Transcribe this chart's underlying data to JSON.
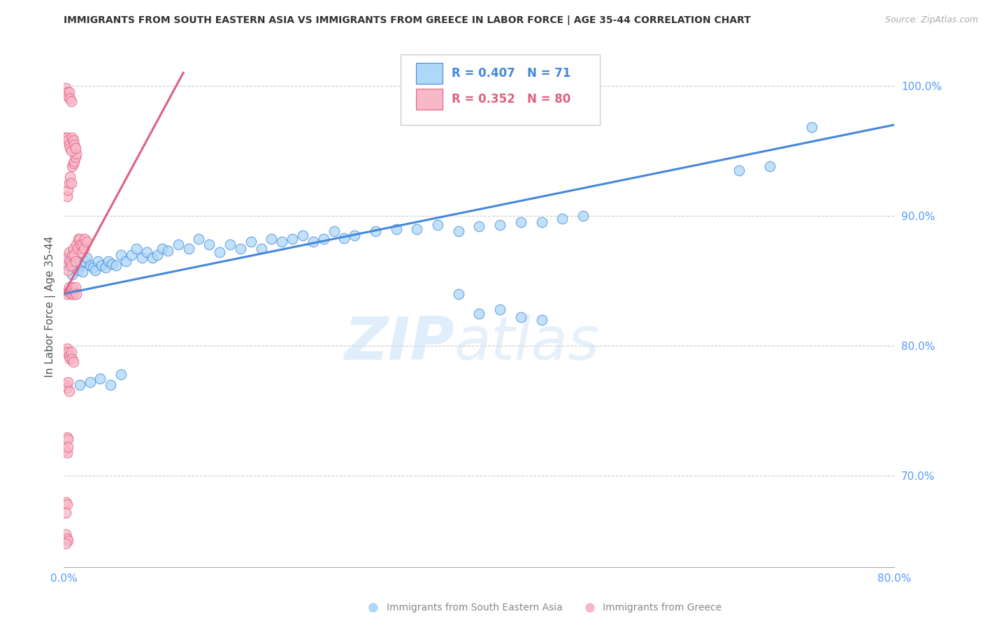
{
  "title": "IMMIGRANTS FROM SOUTH EASTERN ASIA VS IMMIGRANTS FROM GREECE IN LABOR FORCE | AGE 35-44 CORRELATION CHART",
  "source": "Source: ZipAtlas.com",
  "ylabel": "In Labor Force | Age 35-44",
  "xlim": [
    0.0,
    0.8
  ],
  "ylim": [
    0.63,
    1.03
  ],
  "xticks": [
    0.0,
    0.1,
    0.2,
    0.3,
    0.4,
    0.5,
    0.6,
    0.7,
    0.8
  ],
  "xtick_labels": [
    "0.0%",
    "",
    "",
    "",
    "",
    "",
    "",
    "",
    "80.0%"
  ],
  "ytick_values_right": [
    0.7,
    0.8,
    0.9,
    1.0
  ],
  "ytick_labels_right": [
    "70.0%",
    "80.0%",
    "90.0%",
    "100.0%"
  ],
  "blue_color": "#ADD8F7",
  "blue_color_dark": "#4488DD",
  "pink_color": "#F9B8C8",
  "pink_color_dark": "#E06080",
  "R_blue": 0.407,
  "N_blue": 71,
  "R_pink": 0.352,
  "N_pink": 80,
  "legend_label_blue": "Immigrants from South Eastern Asia",
  "legend_label_pink": "Immigrants from Greece",
  "blue_scatter_x": [
    0.003,
    0.005,
    0.008,
    0.01,
    0.012,
    0.014,
    0.016,
    0.018,
    0.02,
    0.022,
    0.025,
    0.028,
    0.03,
    0.033,
    0.036,
    0.04,
    0.043,
    0.046,
    0.05,
    0.055,
    0.06,
    0.065,
    0.07,
    0.075,
    0.08,
    0.085,
    0.09,
    0.095,
    0.1,
    0.11,
    0.12,
    0.13,
    0.14,
    0.15,
    0.16,
    0.17,
    0.18,
    0.19,
    0.2,
    0.21,
    0.22,
    0.23,
    0.24,
    0.25,
    0.26,
    0.27,
    0.28,
    0.3,
    0.32,
    0.34,
    0.36,
    0.38,
    0.4,
    0.42,
    0.44,
    0.46,
    0.48,
    0.5,
    0.38,
    0.4,
    0.42,
    0.44,
    0.46,
    0.65,
    0.68,
    0.72,
    0.015,
    0.025,
    0.035,
    0.045,
    0.055
  ],
  "blue_scatter_y": [
    0.863,
    0.868,
    0.855,
    0.86,
    0.865,
    0.858,
    0.862,
    0.857,
    0.865,
    0.868,
    0.862,
    0.86,
    0.858,
    0.865,
    0.862,
    0.86,
    0.865,
    0.863,
    0.862,
    0.87,
    0.865,
    0.87,
    0.875,
    0.868,
    0.872,
    0.868,
    0.87,
    0.875,
    0.873,
    0.878,
    0.875,
    0.882,
    0.878,
    0.872,
    0.878,
    0.875,
    0.88,
    0.875,
    0.882,
    0.88,
    0.882,
    0.885,
    0.88,
    0.882,
    0.888,
    0.883,
    0.885,
    0.888,
    0.89,
    0.89,
    0.893,
    0.888,
    0.892,
    0.893,
    0.895,
    0.895,
    0.898,
    0.9,
    0.84,
    0.825,
    0.828,
    0.822,
    0.82,
    0.935,
    0.938,
    0.968,
    0.77,
    0.772,
    0.775,
    0.77,
    0.778
  ],
  "pink_scatter_x": [
    0.002,
    0.003,
    0.004,
    0.005,
    0.006,
    0.007,
    0.008,
    0.009,
    0.01,
    0.011,
    0.012,
    0.013,
    0.014,
    0.015,
    0.016,
    0.017,
    0.018,
    0.019,
    0.02,
    0.022,
    0.003,
    0.004,
    0.005,
    0.006,
    0.007,
    0.008,
    0.009,
    0.01,
    0.011,
    0.012,
    0.003,
    0.004,
    0.005,
    0.006,
    0.007,
    0.008,
    0.009,
    0.01,
    0.011,
    0.012,
    0.002,
    0.003,
    0.004,
    0.005,
    0.006,
    0.007,
    0.008,
    0.009,
    0.01,
    0.011,
    0.002,
    0.003,
    0.004,
    0.005,
    0.006,
    0.007,
    0.008,
    0.009,
    0.002,
    0.003,
    0.004,
    0.005,
    0.003,
    0.004,
    0.002,
    0.003,
    0.004,
    0.002,
    0.003,
    0.002,
    0.002,
    0.003,
    0.004,
    0.005,
    0.006,
    0.007,
    0.002,
    0.003,
    0.004,
    0.002
  ],
  "pink_scatter_y": [
    0.868,
    0.862,
    0.858,
    0.872,
    0.865,
    0.862,
    0.87,
    0.875,
    0.87,
    0.865,
    0.878,
    0.875,
    0.882,
    0.882,
    0.878,
    0.872,
    0.878,
    0.875,
    0.882,
    0.88,
    0.915,
    0.92,
    0.925,
    0.93,
    0.925,
    0.938,
    0.94,
    0.942,
    0.945,
    0.948,
    0.84,
    0.842,
    0.845,
    0.842,
    0.84,
    0.845,
    0.84,
    0.842,
    0.845,
    0.84,
    0.96,
    0.96,
    0.958,
    0.955,
    0.952,
    0.95,
    0.96,
    0.958,
    0.955,
    0.952,
    0.795,
    0.798,
    0.795,
    0.792,
    0.79,
    0.795,
    0.79,
    0.788,
    0.77,
    0.768,
    0.772,
    0.765,
    0.73,
    0.728,
    0.72,
    0.718,
    0.722,
    0.68,
    0.678,
    0.672,
    0.998,
    0.995,
    0.992,
    0.995,
    0.99,
    0.988,
    0.655,
    0.652,
    0.65,
    0.648
  ],
  "watermark_zip": "ZIP",
  "watermark_atlas": "atlas",
  "background_color": "#ffffff",
  "grid_color": "#cccccc",
  "title_color": "#333333",
  "axis_color": "#5599ff"
}
